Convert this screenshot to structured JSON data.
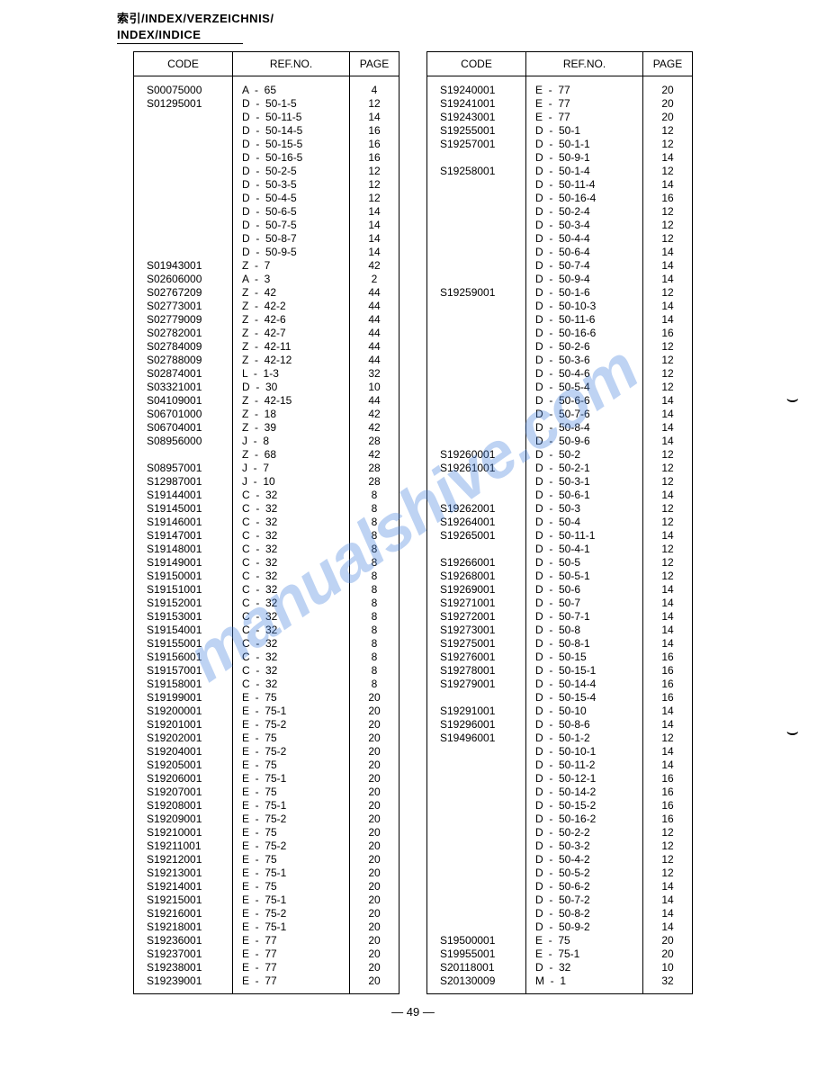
{
  "header": {
    "line1": "索引/INDEX/VERZEICHNIS/",
    "line2": "INDEX/INDICE"
  },
  "columns": {
    "code": "CODE",
    "ref": "REF.NO.",
    "page": "PAGE"
  },
  "footer": "— 49 —",
  "watermark": "manualshive.com",
  "table_left": [
    {
      "code": "S00075000",
      "ref": "A  -  65",
      "page": "4"
    },
    {
      "code": "S01295001",
      "ref": "D  -  50-1-5",
      "page": "12"
    },
    {
      "code": "",
      "ref": "D  -  50-11-5",
      "page": "14"
    },
    {
      "code": "",
      "ref": "D  -  50-14-5",
      "page": "16"
    },
    {
      "code": "",
      "ref": "D  -  50-15-5",
      "page": "16"
    },
    {
      "code": "",
      "ref": "D  -  50-16-5",
      "page": "16"
    },
    {
      "code": "",
      "ref": "D  -  50-2-5",
      "page": "12"
    },
    {
      "code": "",
      "ref": "D  -  50-3-5",
      "page": "12"
    },
    {
      "code": "",
      "ref": "D  -  50-4-5",
      "page": "12"
    },
    {
      "code": "",
      "ref": "D  -  50-6-5",
      "page": "14"
    },
    {
      "code": "",
      "ref": "D  -  50-7-5",
      "page": "14"
    },
    {
      "code": "",
      "ref": "D  -  50-8-7",
      "page": "14"
    },
    {
      "code": "",
      "ref": "D  -  50-9-5",
      "page": "14"
    },
    {
      "code": "S01943001",
      "ref": "Z  -  7",
      "page": "42"
    },
    {
      "code": "S02606000",
      "ref": "A  -  3",
      "page": "2"
    },
    {
      "code": "S02767209",
      "ref": "Z  -  42",
      "page": "44"
    },
    {
      "code": "S02773001",
      "ref": "Z  -  42-2",
      "page": "44"
    },
    {
      "code": "S02779009",
      "ref": "Z  -  42-6",
      "page": "44"
    },
    {
      "code": "S02782001",
      "ref": "Z  -  42-7",
      "page": "44"
    },
    {
      "code": "S02784009",
      "ref": "Z  -  42-11",
      "page": "44"
    },
    {
      "code": "S02788009",
      "ref": "Z  -  42-12",
      "page": "44"
    },
    {
      "code": "S02874001",
      "ref": "L  -  1-3",
      "page": "32"
    },
    {
      "code": "S03321001",
      "ref": "D  -  30",
      "page": "10"
    },
    {
      "code": "S04109001",
      "ref": "Z  -  42-15",
      "page": "44"
    },
    {
      "code": "S06701000",
      "ref": "Z  -  18",
      "page": "42"
    },
    {
      "code": "S06704001",
      "ref": "Z  -  39",
      "page": "42"
    },
    {
      "code": "S08956000",
      "ref": "J  -  8",
      "page": "28"
    },
    {
      "code": "",
      "ref": "Z  -  68",
      "page": "42"
    },
    {
      "code": "S08957001",
      "ref": "J  -  7",
      "page": "28"
    },
    {
      "code": "S12987001",
      "ref": "J  -  10",
      "page": "28"
    },
    {
      "code": "S19144001",
      "ref": "C  -  32",
      "page": "8"
    },
    {
      "code": "S19145001",
      "ref": "C  -  32",
      "page": "8"
    },
    {
      "code": "S19146001",
      "ref": "C  -  32",
      "page": "8"
    },
    {
      "code": "S19147001",
      "ref": "C  -  32",
      "page": "8"
    },
    {
      "code": "S19148001",
      "ref": "C  -  32",
      "page": "8"
    },
    {
      "code": "S19149001",
      "ref": "C  -  32",
      "page": "8"
    },
    {
      "code": "S19150001",
      "ref": "C  -  32",
      "page": "8"
    },
    {
      "code": "S19151001",
      "ref": "C  -  32",
      "page": "8"
    },
    {
      "code": "S19152001",
      "ref": "C  -  32",
      "page": "8"
    },
    {
      "code": "S19153001",
      "ref": "C  -  32",
      "page": "8"
    },
    {
      "code": "S19154001",
      "ref": "C  -  32",
      "page": "8"
    },
    {
      "code": "S19155001",
      "ref": "C  -  32",
      "page": "8"
    },
    {
      "code": "S19156001",
      "ref": "C  -  32",
      "page": "8"
    },
    {
      "code": "S19157001",
      "ref": "C  -  32",
      "page": "8"
    },
    {
      "code": "S19158001",
      "ref": "C  -  32",
      "page": "8"
    },
    {
      "code": "S19199001",
      "ref": "E  -  75",
      "page": "20"
    },
    {
      "code": "S19200001",
      "ref": "E  -  75-1",
      "page": "20"
    },
    {
      "code": "S19201001",
      "ref": "E  -  75-2",
      "page": "20"
    },
    {
      "code": "S19202001",
      "ref": "E  -  75",
      "page": "20"
    },
    {
      "code": "S19204001",
      "ref": "E  -  75-2",
      "page": "20"
    },
    {
      "code": "S19205001",
      "ref": "E  -  75",
      "page": "20"
    },
    {
      "code": "S19206001",
      "ref": "E  -  75-1",
      "page": "20"
    },
    {
      "code": "S19207001",
      "ref": "E  -  75",
      "page": "20"
    },
    {
      "code": "S19208001",
      "ref": "E  -  75-1",
      "page": "20"
    },
    {
      "code": "S19209001",
      "ref": "E  -  75-2",
      "page": "20"
    },
    {
      "code": "S19210001",
      "ref": "E  -  75",
      "page": "20"
    },
    {
      "code": "S19211001",
      "ref": "E  -  75-2",
      "page": "20"
    },
    {
      "code": "S19212001",
      "ref": "E  -  75",
      "page": "20"
    },
    {
      "code": "S19213001",
      "ref": "E  -  75-1",
      "page": "20"
    },
    {
      "code": "S19214001",
      "ref": "E  -  75",
      "page": "20"
    },
    {
      "code": "S19215001",
      "ref": "E  -  75-1",
      "page": "20"
    },
    {
      "code": "S19216001",
      "ref": "E  -  75-2",
      "page": "20"
    },
    {
      "code": "S19218001",
      "ref": "E  -  75-1",
      "page": "20"
    },
    {
      "code": "S19236001",
      "ref": "E  -  77",
      "page": "20"
    },
    {
      "code": "S19237001",
      "ref": "E  -  77",
      "page": "20"
    },
    {
      "code": "S19238001",
      "ref": "E  -  77",
      "page": "20"
    },
    {
      "code": "S19239001",
      "ref": "E  -  77",
      "page": "20"
    }
  ],
  "table_right": [
    {
      "code": "S19240001",
      "ref": "E  -  77",
      "page": "20"
    },
    {
      "code": "S19241001",
      "ref": "E  -  77",
      "page": "20"
    },
    {
      "code": "S19243001",
      "ref": "E  -  77",
      "page": "20"
    },
    {
      "code": "S19255001",
      "ref": "D  -  50-1",
      "page": "12"
    },
    {
      "code": "S19257001",
      "ref": "D  -  50-1-1",
      "page": "12"
    },
    {
      "code": "",
      "ref": "D  -  50-9-1",
      "page": "14"
    },
    {
      "code": "S19258001",
      "ref": "D  -  50-1-4",
      "page": "12"
    },
    {
      "code": "",
      "ref": "D  -  50-11-4",
      "page": "14"
    },
    {
      "code": "",
      "ref": "D  -  50-16-4",
      "page": "16"
    },
    {
      "code": "",
      "ref": "D  -  50-2-4",
      "page": "12"
    },
    {
      "code": "",
      "ref": "D  -  50-3-4",
      "page": "12"
    },
    {
      "code": "",
      "ref": "D  -  50-4-4",
      "page": "12"
    },
    {
      "code": "",
      "ref": "D  -  50-6-4",
      "page": "14"
    },
    {
      "code": "",
      "ref": "D  -  50-7-4",
      "page": "14"
    },
    {
      "code": "",
      "ref": "D  -  50-9-4",
      "page": "14"
    },
    {
      "code": "S19259001",
      "ref": "D  -  50-1-6",
      "page": "12"
    },
    {
      "code": "",
      "ref": "D  -  50-10-3",
      "page": "14"
    },
    {
      "code": "",
      "ref": "D  -  50-11-6",
      "page": "14"
    },
    {
      "code": "",
      "ref": "D  -  50-16-6",
      "page": "16"
    },
    {
      "code": "",
      "ref": "D  -  50-2-6",
      "page": "12"
    },
    {
      "code": "",
      "ref": "D  -  50-3-6",
      "page": "12"
    },
    {
      "code": "",
      "ref": "D  -  50-4-6",
      "page": "12"
    },
    {
      "code": "",
      "ref": "D  -  50-5-4",
      "page": "12"
    },
    {
      "code": "",
      "ref": "D  -  50-6-6",
      "page": "14"
    },
    {
      "code": "",
      "ref": "D  -  50-7-6",
      "page": "14"
    },
    {
      "code": "",
      "ref": "D  -  50-8-4",
      "page": "14"
    },
    {
      "code": "",
      "ref": "D  -  50-9-6",
      "page": "14"
    },
    {
      "code": "S19260001",
      "ref": "D  -  50-2",
      "page": "12"
    },
    {
      "code": "S19261001",
      "ref": "D  -  50-2-1",
      "page": "12"
    },
    {
      "code": "",
      "ref": "D  -  50-3-1",
      "page": "12"
    },
    {
      "code": "",
      "ref": "D  -  50-6-1",
      "page": "14"
    },
    {
      "code": "S19262001",
      "ref": "D  -  50-3",
      "page": "12"
    },
    {
      "code": "S19264001",
      "ref": "D  -  50-4",
      "page": "12"
    },
    {
      "code": "S19265001",
      "ref": "D  -  50-11-1",
      "page": "14"
    },
    {
      "code": "",
      "ref": "D  -  50-4-1",
      "page": "12"
    },
    {
      "code": "S19266001",
      "ref": "D  -  50-5",
      "page": "12"
    },
    {
      "code": "S19268001",
      "ref": "D  -  50-5-1",
      "page": "12"
    },
    {
      "code": "S19269001",
      "ref": "D  -  50-6",
      "page": "14"
    },
    {
      "code": "S19271001",
      "ref": "D  -  50-7",
      "page": "14"
    },
    {
      "code": "S19272001",
      "ref": "D  -  50-7-1",
      "page": "14"
    },
    {
      "code": "S19273001",
      "ref": "D  -  50-8",
      "page": "14"
    },
    {
      "code": "S19275001",
      "ref": "D  -  50-8-1",
      "page": "14"
    },
    {
      "code": "S19276001",
      "ref": "D  -  50-15",
      "page": "16"
    },
    {
      "code": "S19278001",
      "ref": "D  -  50-15-1",
      "page": "16"
    },
    {
      "code": "S19279001",
      "ref": "D  -  50-14-4",
      "page": "16"
    },
    {
      "code": "",
      "ref": "D  -  50-15-4",
      "page": "16"
    },
    {
      "code": "S19291001",
      "ref": "D  -  50-10",
      "page": "14"
    },
    {
      "code": "S19296001",
      "ref": "D  -  50-8-6",
      "page": "14"
    },
    {
      "code": "S19496001",
      "ref": "D  -  50-1-2",
      "page": "12"
    },
    {
      "code": "",
      "ref": "D  -  50-10-1",
      "page": "14"
    },
    {
      "code": "",
      "ref": "D  -  50-11-2",
      "page": "14"
    },
    {
      "code": "",
      "ref": "D  -  50-12-1",
      "page": "16"
    },
    {
      "code": "",
      "ref": "D  -  50-14-2",
      "page": "16"
    },
    {
      "code": "",
      "ref": "D  -  50-15-2",
      "page": "16"
    },
    {
      "code": "",
      "ref": "D  -  50-16-2",
      "page": "16"
    },
    {
      "code": "",
      "ref": "D  -  50-2-2",
      "page": "12"
    },
    {
      "code": "",
      "ref": "D  -  50-3-2",
      "page": "12"
    },
    {
      "code": "",
      "ref": "D  -  50-4-2",
      "page": "12"
    },
    {
      "code": "",
      "ref": "D  -  50-5-2",
      "page": "12"
    },
    {
      "code": "",
      "ref": "D  -  50-6-2",
      "page": "14"
    },
    {
      "code": "",
      "ref": "D  -  50-7-2",
      "page": "14"
    },
    {
      "code": "",
      "ref": "D  -  50-8-2",
      "page": "14"
    },
    {
      "code": "",
      "ref": "D  -  50-9-2",
      "page": "14"
    },
    {
      "code": "S19500001",
      "ref": "E  -  75",
      "page": "20"
    },
    {
      "code": "S19955001",
      "ref": "E  -  75-1",
      "page": "20"
    },
    {
      "code": "S20118001",
      "ref": "D  -  32",
      "page": "10"
    },
    {
      "code": "S20130009",
      "ref": "M  -  1",
      "page": "32"
    }
  ]
}
